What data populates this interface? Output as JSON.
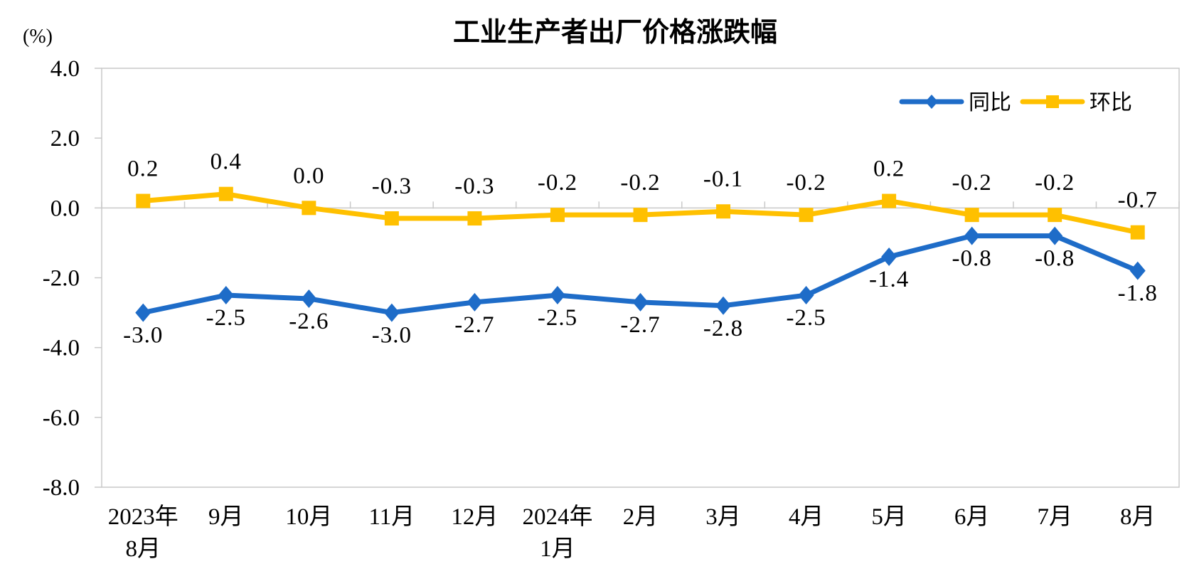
{
  "chart": {
    "colors": {
      "axis": "#C9C9C9",
      "text": "#000000",
      "yoy_blue": "#1E6CC8",
      "mom_yellow": "#FFC000"
    }
  },
  "chart_data": {
    "type": "line",
    "title": "工业生产者出厂价格涨跌幅",
    "ylabel": "(%)",
    "xlabel": "",
    "ylim": [
      -8.0,
      4.0
    ],
    "ytick_step": 2.0,
    "ytick_labels": [
      "4.0",
      "2.0",
      "0.0",
      "-2.0",
      "-4.0",
      "-6.0",
      "-8.0"
    ],
    "grid": false,
    "legend_position": "top-right",
    "categories": [
      "2023年8月",
      "9月",
      "10月",
      "11月",
      "12月",
      "2024年1月",
      "2月",
      "3月",
      "4月",
      "5月",
      "6月",
      "7月",
      "8月"
    ],
    "categories_display": [
      [
        "2023年",
        "8月"
      ],
      [
        "9月"
      ],
      [
        "10月"
      ],
      [
        "11月"
      ],
      [
        "12月"
      ],
      [
        "2024年",
        "1月"
      ],
      [
        "2月"
      ],
      [
        "3月"
      ],
      [
        "4月"
      ],
      [
        "5月"
      ],
      [
        "6月"
      ],
      [
        "7月"
      ],
      [
        "8月"
      ]
    ],
    "series": [
      {
        "id": "yoy",
        "name": "同比",
        "color": "#1E6CC8",
        "marker": "diamond",
        "label_side": "below",
        "values": [
          -3.0,
          -2.5,
          -2.6,
          -3.0,
          -2.7,
          -2.5,
          -2.7,
          -2.8,
          -2.5,
          -1.4,
          -0.8,
          -0.8,
          -1.8
        ]
      },
      {
        "id": "mom",
        "name": "环比",
        "color": "#FFC000",
        "marker": "square",
        "label_side": "above",
        "values": [
          0.2,
          0.4,
          0.0,
          -0.3,
          -0.3,
          -0.2,
          -0.2,
          -0.1,
          -0.2,
          0.2,
          -0.2,
          -0.2,
          -0.7
        ]
      }
    ]
  }
}
